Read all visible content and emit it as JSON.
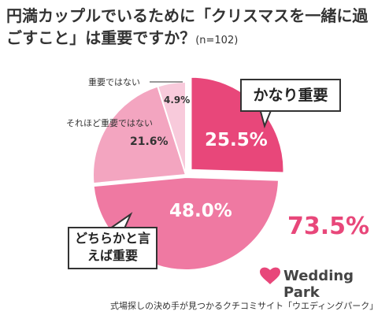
{
  "chart_data": {
    "type": "pie",
    "title": "円満カップルでいるために「クリスマスを一緒に過ごすこと」は重要ですか？",
    "subtitle": "(n=102)",
    "categories": [
      "かなり重要",
      "どちらかと言えば重要",
      "それほど重要ではない",
      "重要ではない"
    ],
    "values": [
      25.5,
      48.0,
      21.6,
      4.9
    ],
    "value_labels": [
      "25.5%",
      "48.0%",
      "21.6%",
      "4.9%"
    ],
    "colors": [
      "#e8477a",
      "#ef79a2",
      "#f3a5c0",
      "#f8cadb"
    ],
    "combined": {
      "value": 73.5,
      "label": "73.5%"
    }
  },
  "brand": "Wedding Park",
  "footer": "式場探しの決め手が見つかるクチコミサイト「ウエディングパーク」"
}
